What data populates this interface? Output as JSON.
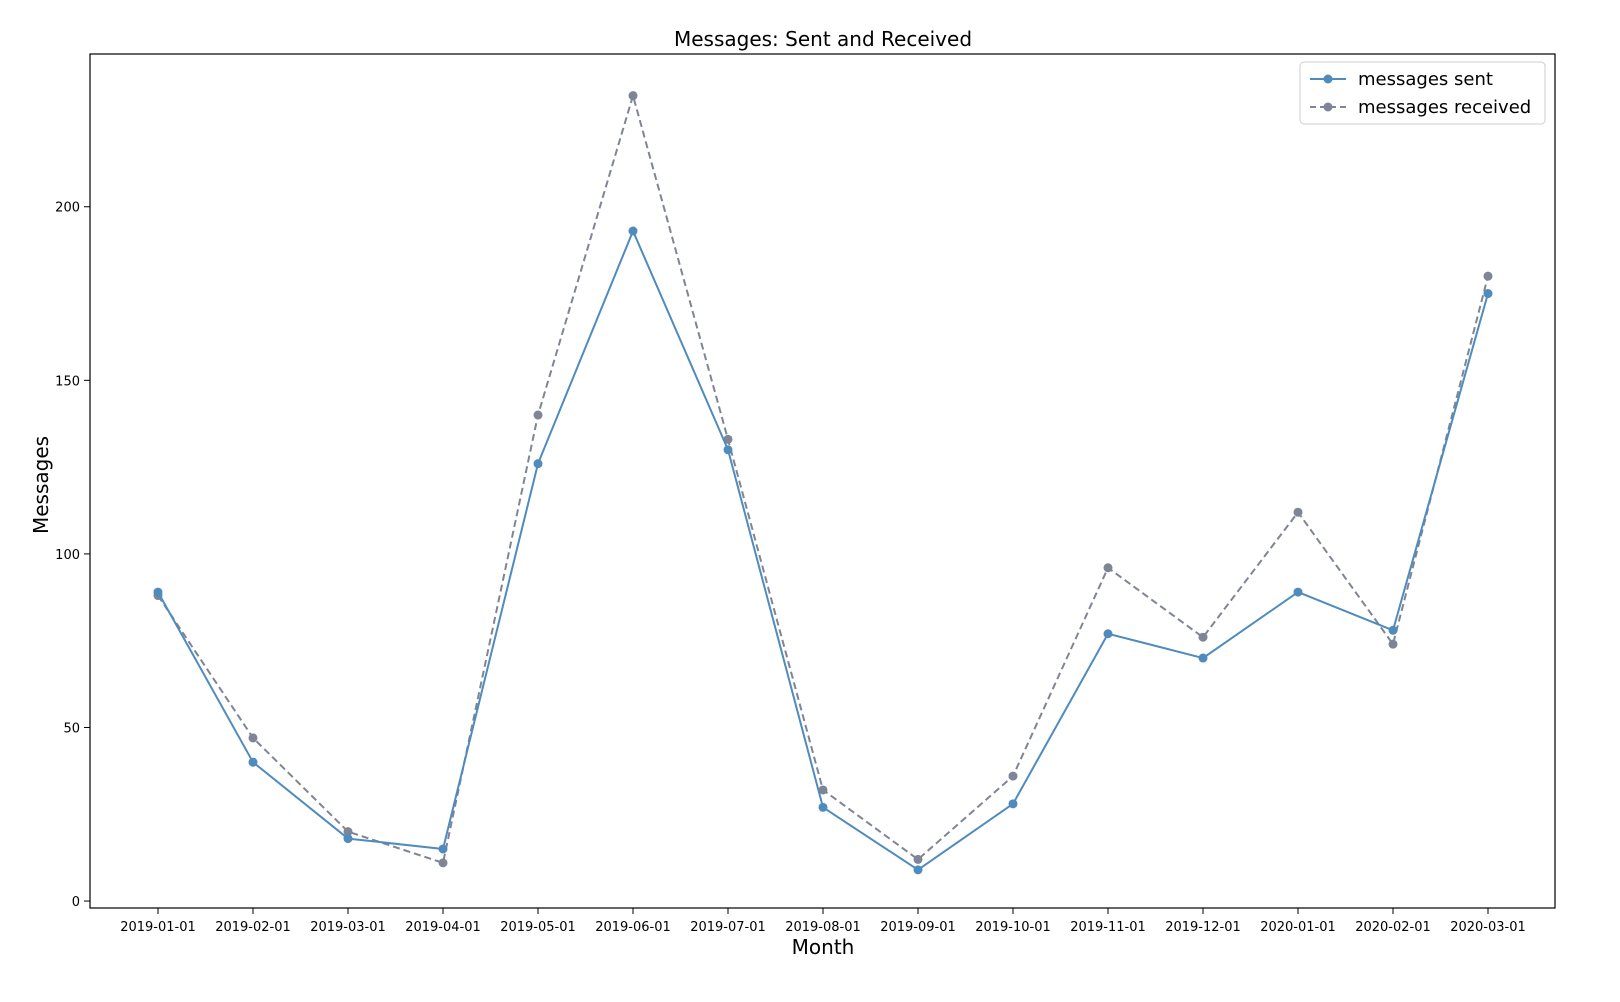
{
  "chart_data": {
    "type": "line",
    "title": "Messages: Sent and Received",
    "xlabel": "Month",
    "ylabel": "Messages",
    "categories": [
      "2019-01-01",
      "2019-02-01",
      "2019-03-01",
      "2019-04-01",
      "2019-05-01",
      "2019-06-01",
      "2019-07-01",
      "2019-08-01",
      "2019-09-01",
      "2019-10-01",
      "2019-11-01",
      "2019-12-01",
      "2020-01-01",
      "2020-02-01",
      "2020-03-01"
    ],
    "ylim": [
      -2,
      244
    ],
    "yticks": [
      0,
      50,
      100,
      150,
      200
    ],
    "grid": false,
    "legend_position": "top-right",
    "series": [
      {
        "name": "messages sent",
        "color": "#4f8bbd",
        "line_style": "solid",
        "values": [
          89,
          40,
          18,
          15,
          126,
          193,
          130,
          27,
          9,
          28,
          77,
          70,
          89,
          78,
          175
        ]
      },
      {
        "name": "messages received",
        "color": "#7f8595",
        "line_style": "dashed",
        "values": [
          88,
          47,
          20,
          11,
          140,
          232,
          133,
          32,
          12,
          36,
          96,
          76,
          112,
          74,
          180
        ]
      }
    ]
  }
}
